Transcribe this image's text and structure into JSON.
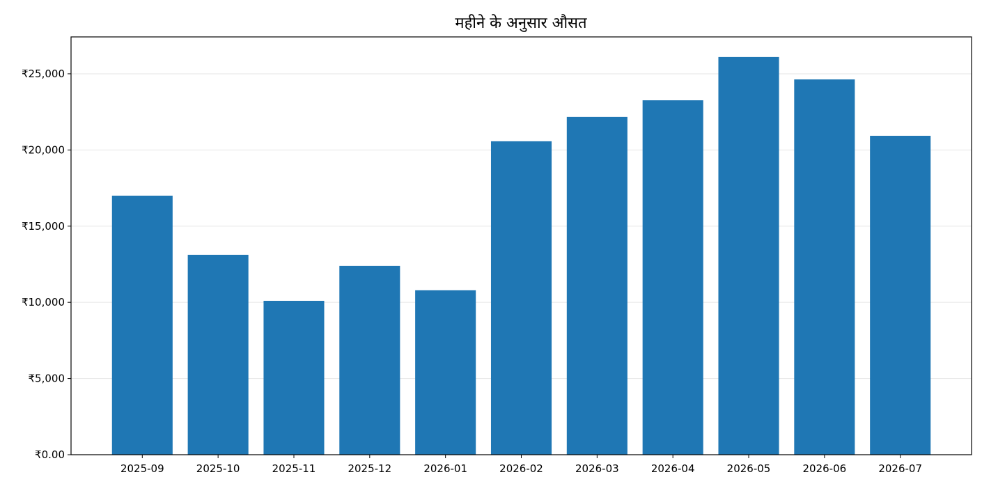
{
  "chart_data": {
    "type": "bar",
    "title": "महीने के अनुसार औसत",
    "xlabel": "",
    "ylabel": "",
    "categories": [
      "2025-09",
      "2025-10",
      "2025-11",
      "2025-12",
      "2026-01",
      "2026-02",
      "2026-03",
      "2026-04",
      "2026-05",
      "2026-06",
      "2026-07"
    ],
    "values": [
      17000,
      13120,
      10100,
      12390,
      10790,
      20570,
      22170,
      23260,
      26100,
      24630,
      20930
    ],
    "ylim": [
      0,
      27420
    ],
    "yticks": [
      0,
      5000,
      10000,
      15000,
      20000,
      25000
    ],
    "ytick_labels": [
      "₹0.00",
      "₹5,000",
      "₹10,000",
      "₹15,000",
      "₹20,000",
      "₹25,000"
    ],
    "grid": "horizontal",
    "bar_color": "#1f77b4",
    "grid_color": "#e6e6e6"
  }
}
